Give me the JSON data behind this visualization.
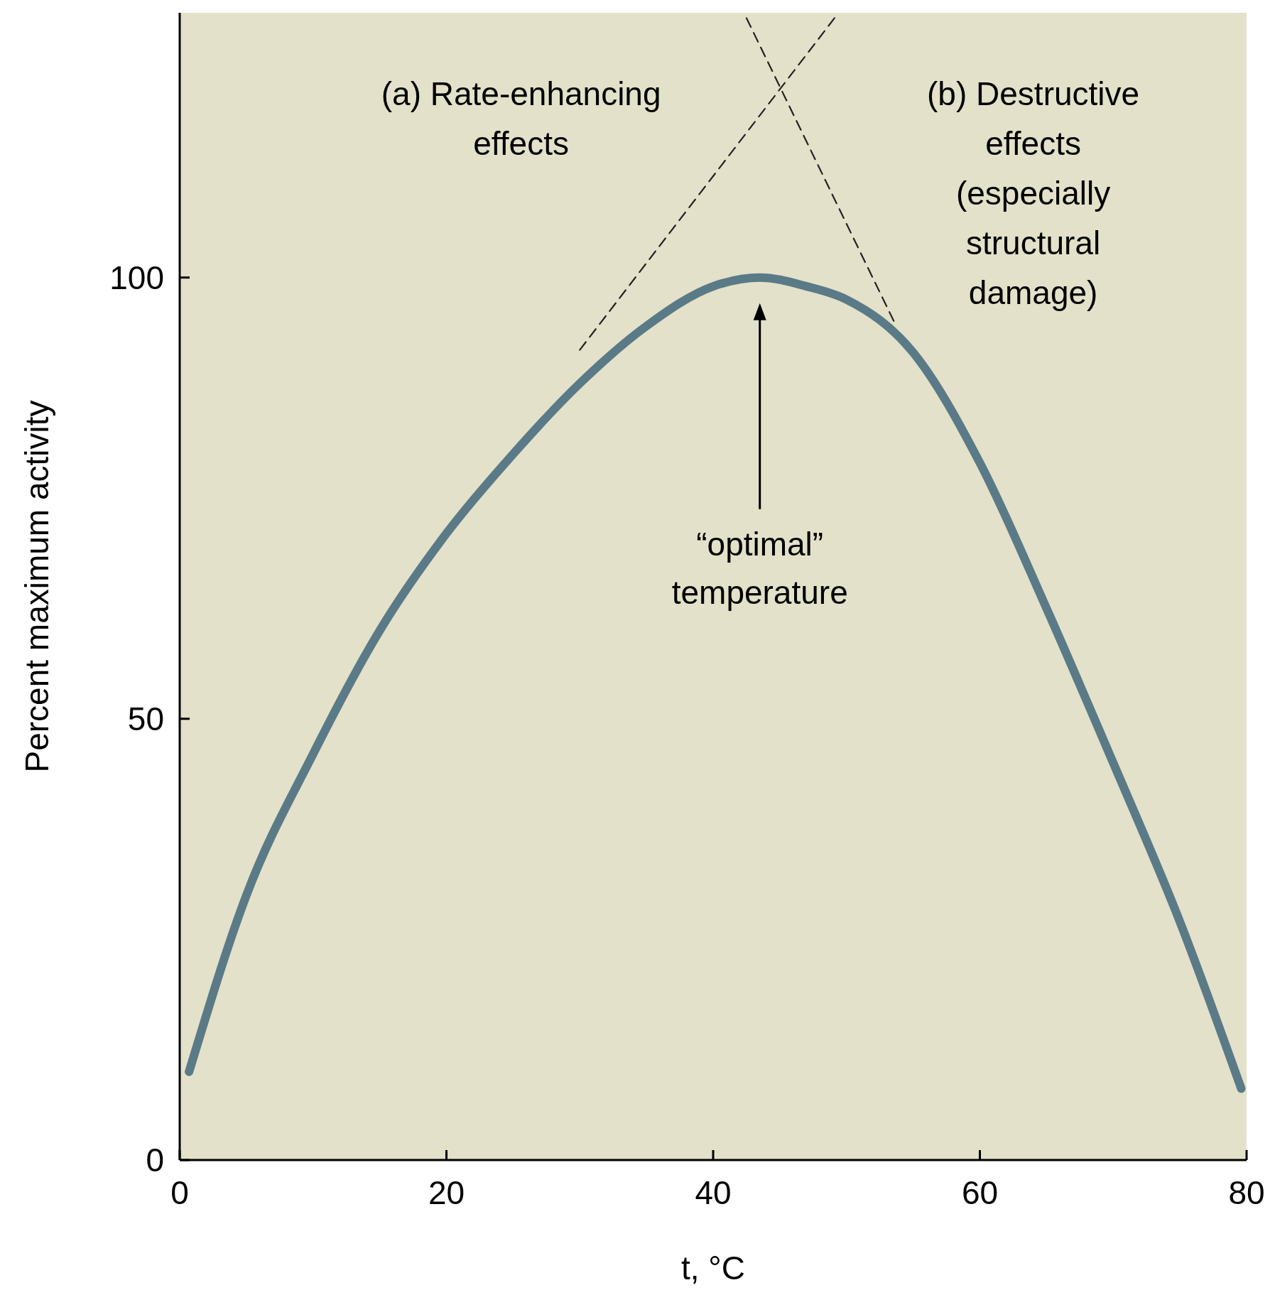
{
  "chart_data": {
    "type": "line",
    "xlabel": "t, °C",
    "ylabel": "Percent maximum activity",
    "xlim": [
      0,
      80
    ],
    "ylim": [
      0,
      130
    ],
    "xticks": [
      0,
      20,
      40,
      60,
      80
    ],
    "yticks": [
      0,
      50,
      100
    ],
    "series": [
      {
        "color": "#5a7a87",
        "x": [
          0.7,
          5,
          10,
          15,
          20,
          25,
          30,
          35,
          40,
          43.5,
          47,
          50,
          55,
          60,
          65,
          70,
          75,
          79.6
        ],
        "values": [
          10,
          30,
          46,
          60,
          71,
          80,
          88,
          94.5,
          99,
          100,
          99,
          97.5,
          91.5,
          79,
          62.5,
          45,
          27,
          8.1
        ]
      },
      {
        "color": "#222222",
        "line_style": "dashed",
        "x": [
          30,
          49.1
        ],
        "values": [
          91.8,
          129.4
        ]
      },
      {
        "color": "#222222",
        "line_style": "dashed",
        "x": [
          42.5,
          53.6
        ],
        "values": [
          129.4,
          94.9
        ]
      }
    ],
    "annotations": [
      "(a) Rate-enhancing effects",
      "(b) Destructive effects (especially structural damage)",
      "“optimal” temperature"
    ]
  }
}
